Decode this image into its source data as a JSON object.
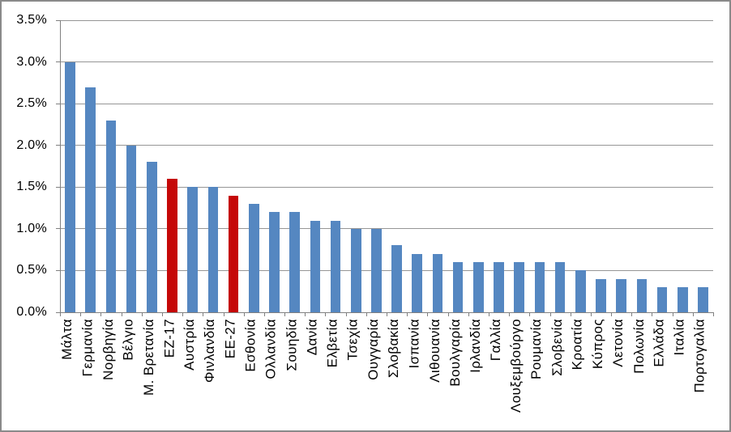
{
  "chart_data": {
    "type": "bar",
    "title": "",
    "xlabel": "",
    "ylabel": "",
    "unit": "percent",
    "ylim": [
      0,
      3.5
    ],
    "ytick_step": 0.5,
    "ytick_labels": [
      "0.0%",
      "0.5%",
      "1.0%",
      "1.5%",
      "2.0%",
      "2.5%",
      "3.0%",
      "3.5%"
    ],
    "grid": "horizontal",
    "legend": "none",
    "categories": [
      "Μάλτα",
      "Γερμανία",
      "Νορβηγία",
      "Βέλγιο",
      "Μ. Βρετανία",
      "ΕΖ-17",
      "Αυστρία",
      "Φινλανδία",
      "ΕΕ-27",
      "Εσθονία",
      "Ολλανδία",
      "Σουηδία",
      "Δανία",
      "Ελβετία",
      "Τσεχία",
      "Ουγγαρία",
      "Σλοβακία",
      "Ισπανία",
      "Λιθουανία",
      "Βουλγαρία",
      "Ιρλανδία",
      "Γαλλία",
      "Λουξεμβούργο",
      "Ρουμανία",
      "Σλοβενία",
      "Κροατία",
      "Κύπρος",
      "Λετονία",
      "Πολωνία",
      "Ελλάδα",
      "Ιταλία",
      "Πορτογαλία"
    ],
    "values": [
      3.0,
      2.7,
      2.3,
      2.0,
      1.8,
      1.6,
      1.5,
      1.5,
      1.4,
      1.3,
      1.2,
      1.2,
      1.1,
      1.1,
      1.0,
      1.0,
      0.8,
      0.7,
      0.7,
      0.6,
      0.6,
      0.6,
      0.6,
      0.6,
      0.6,
      0.5,
      0.4,
      0.4,
      0.4,
      0.3,
      0.3,
      0.3
    ],
    "highlight_indices": [
      5,
      8
    ],
    "highlighted_categories": [
      "ΕΖ-17",
      "ΕΕ-27"
    ],
    "colors": {
      "bar": "#5587C1",
      "bar_highlight": "#C50808",
      "gridline": "#969696",
      "axis": "#808080",
      "label": "#000000",
      "background": "#FFFFFF",
      "border": "#8A8A8A"
    }
  }
}
